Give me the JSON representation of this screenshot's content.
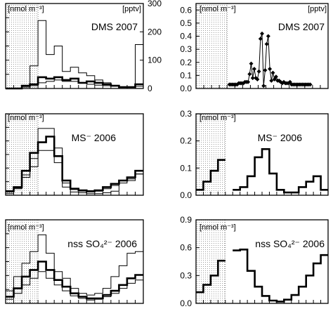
{
  "chart_data": [
    {
      "type": "line",
      "subtype": "step-histogram",
      "title": "DMS 2007",
      "unit_left": "[nmol m⁻³]",
      "unit_right": "[pptv]",
      "yticks_left": [],
      "yticks_right": [
        "0",
        "100",
        "200",
        "300"
      ],
      "ylim": [
        0,
        300
      ],
      "x_bins": 17,
      "shaded_bins": [
        0,
        4
      ],
      "series": [
        {
          "style": "thin",
          "values": [
            0,
            0,
            5,
            80,
            240,
            120,
            150,
            60,
            75,
            55,
            45,
            30,
            20,
            10,
            0,
            0,
            155
          ]
        },
        {
          "style": "thick",
          "values": [
            0,
            0,
            10,
            15,
            40,
            35,
            40,
            30,
            35,
            20,
            25,
            20,
            15,
            10,
            5,
            5,
            15
          ]
        },
        {
          "style": "thin",
          "values": [
            0,
            0,
            5,
            10,
            20,
            25,
            30,
            25,
            25,
            20,
            15,
            12,
            10,
            8,
            5,
            5,
            8
          ]
        }
      ]
    },
    {
      "type": "scatter",
      "title": "DMS 2007",
      "unit_left": "[nmol m⁻³]",
      "unit_right": "[pptv]",
      "yticks_left": [
        "0.0",
        "0.1",
        "0.2",
        "0.3",
        "0.4",
        "0.5",
        "0.6"
      ],
      "ylim": [
        0,
        0.65
      ],
      "shaded_bins": [
        0,
        4
      ],
      "x_bins": 17,
      "series": [
        {
          "style": "diamonds-line",
          "points": [
            [
              4.3,
              0.03
            ],
            [
              4.5,
              0.03
            ],
            [
              4.7,
              0.03
            ],
            [
              4.9,
              0.03
            ],
            [
              5.1,
              0.03
            ],
            [
              5.3,
              0.03
            ],
            [
              5.5,
              0.04
            ],
            [
              5.7,
              0.04
            ],
            [
              5.9,
              0.04
            ],
            [
              6.1,
              0.04
            ],
            [
              6.3,
              0.05
            ],
            [
              6.5,
              0.05
            ],
            [
              6.7,
              0.05
            ],
            [
              6.9,
              0.11
            ],
            [
              7.1,
              0.19
            ],
            [
              7.3,
              0.08
            ],
            [
              7.5,
              0.15
            ],
            [
              7.7,
              0.08
            ],
            [
              7.9,
              0.07
            ],
            [
              8.1,
              0.13
            ],
            [
              8.3,
              0.38
            ],
            [
              8.5,
              0.42
            ],
            [
              8.7,
              0.02
            ],
            [
              8.9,
              0.14
            ],
            [
              9.1,
              0.34
            ],
            [
              9.3,
              0.4
            ],
            [
              9.5,
              0.15
            ],
            [
              9.7,
              0.06
            ],
            [
              9.9,
              0.12
            ],
            [
              10.1,
              0.07
            ],
            [
              10.3,
              0.09
            ],
            [
              10.5,
              0.06
            ],
            [
              10.7,
              0.06
            ],
            [
              10.9,
              0.05
            ],
            [
              11.1,
              0.04
            ],
            [
              11.3,
              0.05
            ],
            [
              11.5,
              0.04
            ],
            [
              11.7,
              0.04
            ],
            [
              11.9,
              0.04
            ],
            [
              12.1,
              0.05
            ],
            [
              12.3,
              0.03
            ],
            [
              12.5,
              0.03
            ],
            [
              12.7,
              0.03
            ],
            [
              12.9,
              0.03
            ],
            [
              13.1,
              0.03
            ],
            [
              13.3,
              0.03
            ],
            [
              13.5,
              0.03
            ],
            [
              13.7,
              0.03
            ],
            [
              13.9,
              0.03
            ],
            [
              14.1,
              0.03
            ],
            [
              14.3,
              0.03
            ],
            [
              14.5,
              0.03
            ],
            [
              14.7,
              0.03
            ]
          ]
        }
      ]
    },
    {
      "type": "line",
      "subtype": "step-histogram",
      "title": "MS⁻ 2006",
      "unit_left": "[nmol m⁻³]",
      "yticks_left": [],
      "ylim": [
        0,
        1
      ],
      "x_bins": 17,
      "shaded_bins": [
        0,
        4
      ],
      "series": [
        {
          "style": "thin",
          "values": [
            0.02,
            0.08,
            0.22,
            0.45,
            0.82,
            0.82,
            0.58,
            0.1,
            0.04,
            0.03,
            0.02,
            0.02,
            0.03,
            0.05,
            0.18,
            0.18,
            0.26
          ]
        },
        {
          "style": "thick",
          "values": [
            0.05,
            0.1,
            0.3,
            0.52,
            0.65,
            0.72,
            0.48,
            0.18,
            0.08,
            0.06,
            0.05,
            0.06,
            0.1,
            0.14,
            0.18,
            0.22,
            0.3
          ]
        },
        {
          "style": "thin",
          "values": [
            0.04,
            0.09,
            0.25,
            0.35,
            0.55,
            0.55,
            0.4,
            0.15,
            0.07,
            0.05,
            0.04,
            0.05,
            0.08,
            0.12,
            0.15,
            0.2,
            0.26
          ]
        }
      ]
    },
    {
      "type": "line",
      "subtype": "step-histogram",
      "title": "MS⁻ 2006",
      "unit_left": "[nmol m⁻³]",
      "yticks_left": [
        "0.0",
        "0.1",
        "0.2",
        "0.3"
      ],
      "ylim": [
        0,
        0.3
      ],
      "x_bins": 17,
      "shaded_bins": [
        0,
        4
      ],
      "series": [
        {
          "style": "thick",
          "values": [
            0.02,
            0.05,
            0.09,
            0.13,
            null,
            0.02,
            0.03,
            0.07,
            0.14,
            0.17,
            0.08,
            0.02,
            0.01,
            0.01,
            0.03,
            0.05,
            0.07,
            0.02
          ]
        }
      ]
    },
    {
      "type": "line",
      "subtype": "step-histogram",
      "title": "nss SO₄²⁻ 2006",
      "unit_left": "[nmol m⁻³]",
      "yticks_left": [],
      "ylim": [
        0,
        1
      ],
      "x_bins": 17,
      "shaded_bins": [
        0,
        4
      ],
      "series": [
        {
          "style": "thin",
          "values": [
            0.15,
            0.32,
            0.48,
            0.62,
            0.82,
            0.6,
            0.38,
            0.3,
            0.18,
            0.12,
            0.1,
            0.12,
            0.18,
            0.32,
            0.45,
            0.6,
            0.62
          ]
        },
        {
          "style": "thick",
          "values": [
            0.08,
            0.18,
            0.32,
            0.4,
            0.5,
            0.4,
            0.28,
            0.2,
            0.12,
            0.08,
            0.06,
            0.06,
            0.1,
            0.15,
            0.22,
            0.3,
            0.34
          ]
        },
        {
          "style": "thin",
          "values": [
            0.05,
            0.12,
            0.22,
            0.3,
            0.38,
            0.3,
            0.22,
            0.15,
            0.09,
            0.06,
            0.04,
            0.05,
            0.08,
            0.12,
            0.18,
            0.24,
            0.28
          ]
        }
      ]
    },
    {
      "type": "line",
      "subtype": "step-histogram",
      "title": "nss SO₄²⁻ 2006",
      "unit_left": "[nmol m⁻³]",
      "yticks_left": [
        "0.0",
        "0.3",
        "0.6",
        "0.9"
      ],
      "ylim": [
        0,
        0.9
      ],
      "x_bins": 17,
      "shaded_bins": [
        0,
        4
      ],
      "series": [
        {
          "style": "thick",
          "values": [
            0.12,
            0.2,
            0.3,
            0.46,
            null,
            0.57,
            0.58,
            0.35,
            0.18,
            0.08,
            0.03,
            0.02,
            0.04,
            0.09,
            0.18,
            0.3,
            0.43,
            0.52
          ]
        }
      ]
    }
  ]
}
